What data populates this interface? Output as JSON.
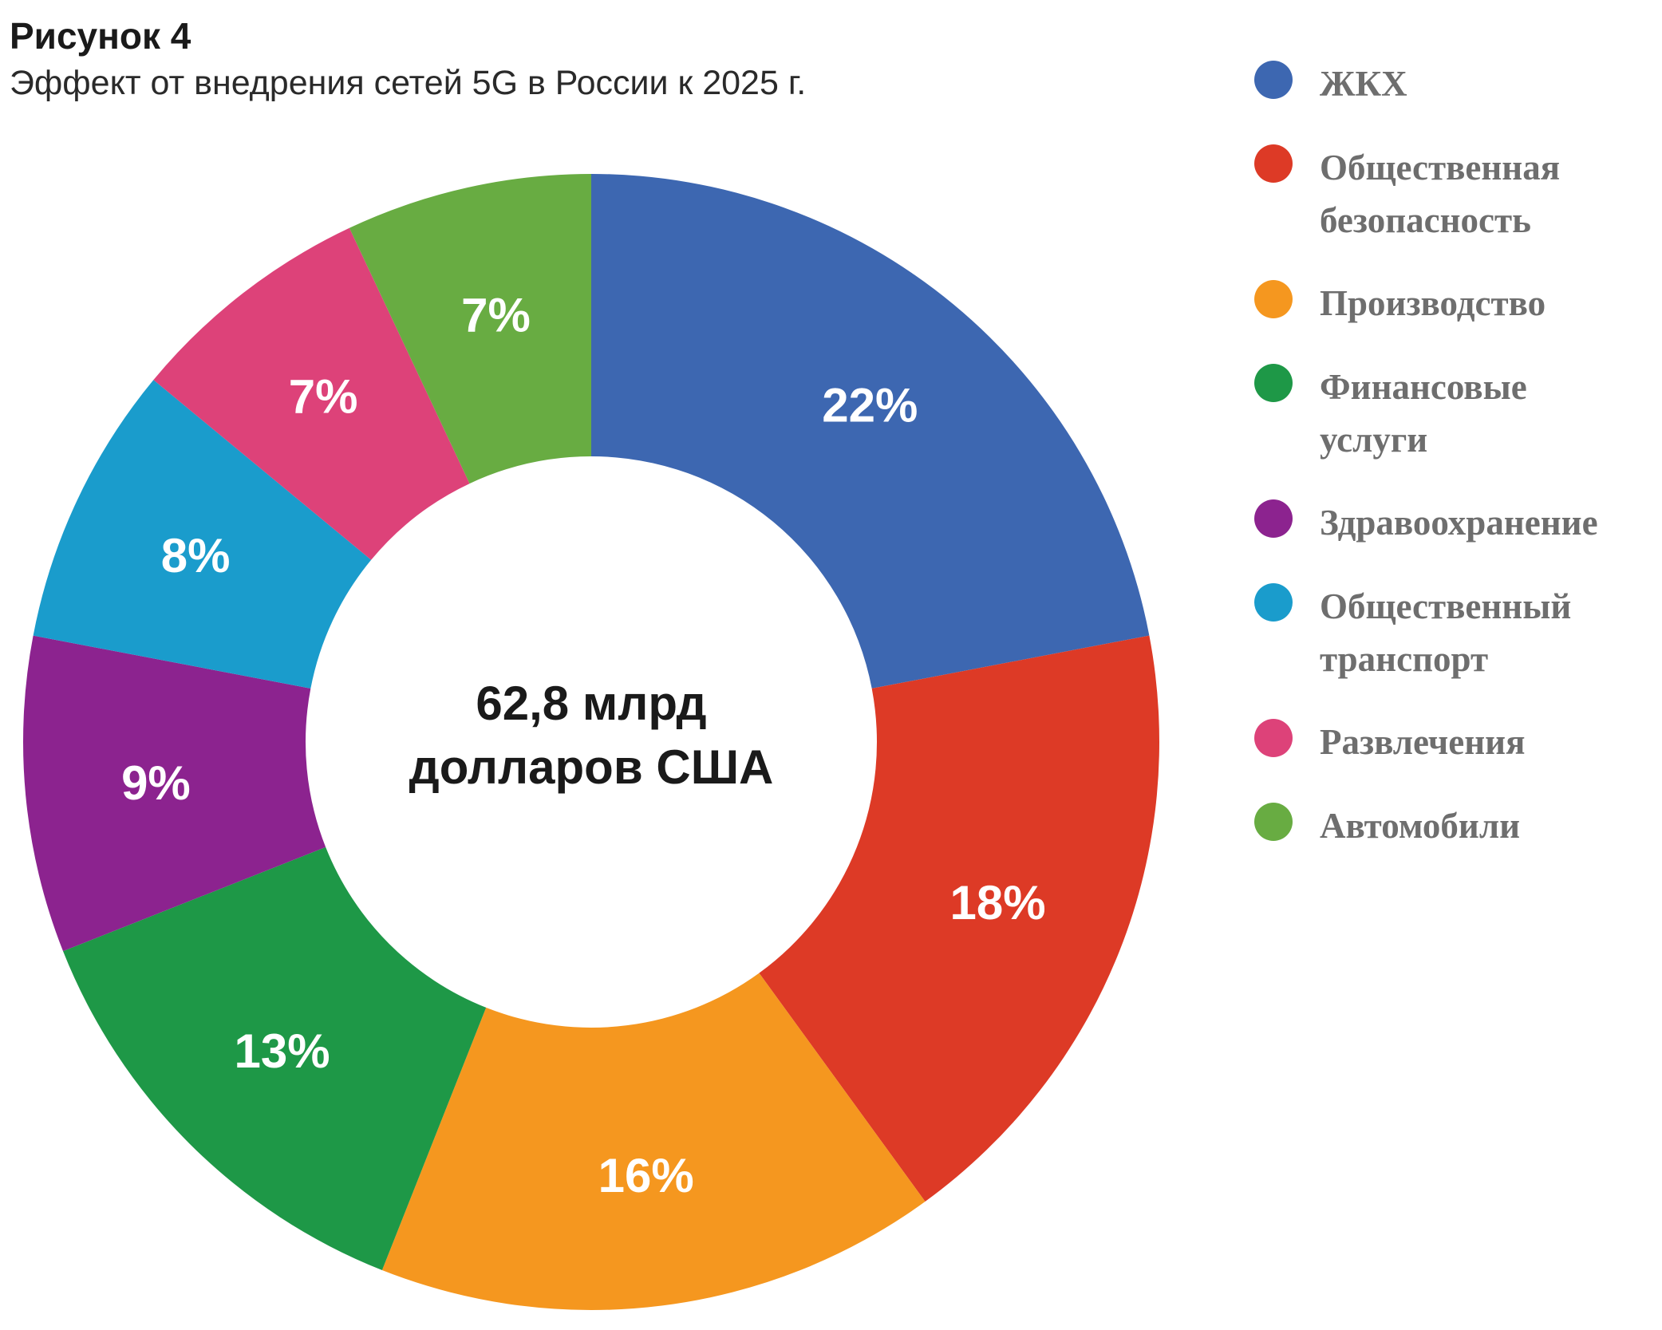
{
  "figure": {
    "number": "Рисунок 4",
    "subtitle": "Эффект от внедрения сетей 5G в России к 2025 г."
  },
  "chart_data": {
    "type": "pie",
    "donut": true,
    "title": "Рисунок 4",
    "subtitle": "Эффект от внедрения сетей 5G в России к 2025 г.",
    "center_label": [
      "62,8 млрд",
      "долларов США"
    ],
    "legend_position": "right",
    "slices": [
      {
        "name": "ЖКХ",
        "value": 22,
        "label": "22%",
        "color": "#3d67b1",
        "legend": "ЖКХ"
      },
      {
        "name": "Общественная безопасность",
        "value": 18,
        "label": "18%",
        "color": "#dd3a26",
        "legend": "Общественная\nбезопасность"
      },
      {
        "name": "Производство",
        "value": 16,
        "label": "16%",
        "color": "#f5971f",
        "legend": "Производство"
      },
      {
        "name": "Финансовые услуги",
        "value": 13,
        "label": "13%",
        "color": "#1e9847",
        "legend": "Финансовые\nуслуги"
      },
      {
        "name": "Здравоохранение",
        "value": 9,
        "label": "9%",
        "color": "#8c238f",
        "legend": "Здравоохранение"
      },
      {
        "name": "Общественный транспорт",
        "value": 8,
        "label": "8%",
        "color": "#1a9ccc",
        "legend": "Общественный\nтранспорт"
      },
      {
        "name": "Развлечения",
        "value": 7,
        "label": "7%",
        "color": "#dd4279",
        "legend": "Развлечения"
      },
      {
        "name": "Автомобили",
        "value": 7,
        "label": "7%",
        "color": "#68ac42",
        "legend": "Автомобили"
      }
    ]
  }
}
